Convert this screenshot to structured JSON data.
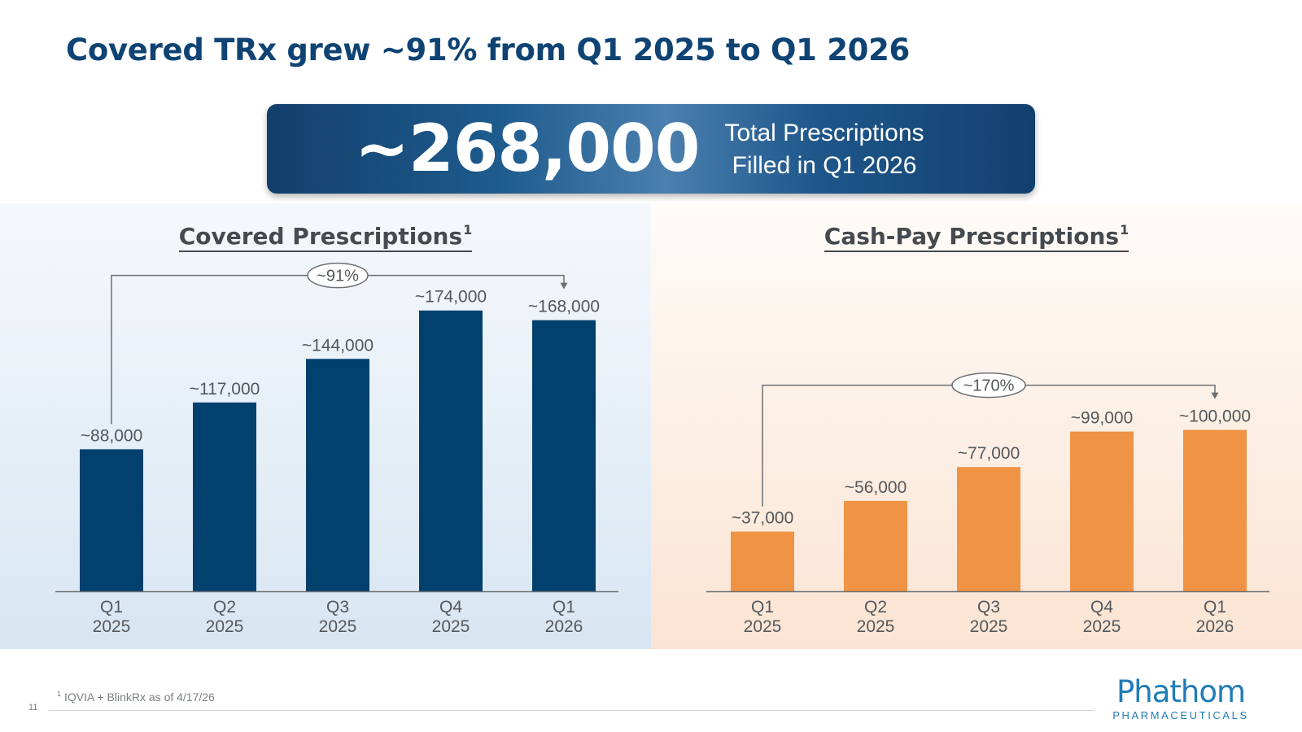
{
  "title": "Covered TRx grew ~91% from Q1 2025 to Q1 2026",
  "banner": {
    "value": "~268,000",
    "caption_line1": "Total Prescriptions",
    "caption_line2": "Filled in Q1 2026"
  },
  "colors": {
    "title": "#0e4373",
    "covered_bar": "#02406e",
    "cash_bar": "#ef9345",
    "axis": "#6b6f73",
    "label": "#54585c"
  },
  "chart_data": [
    {
      "type": "bar",
      "title": "Covered Prescriptions",
      "title_sup": "1",
      "categories": [
        [
          "Q1",
          "2025"
        ],
        [
          "Q2",
          "2025"
        ],
        [
          "Q3",
          "2025"
        ],
        [
          "Q4",
          "2025"
        ],
        [
          "Q1",
          "2026"
        ]
      ],
      "values": [
        88000,
        117000,
        144000,
        174000,
        168000
      ],
      "data_labels": [
        "~88,000",
        "~117,000",
        "~144,000",
        "~174,000",
        "~168,000"
      ],
      "annotation": {
        "label": "~91%",
        "from": 0,
        "to": 4
      },
      "color": "#02406e",
      "ylim": [
        0,
        190000
      ],
      "grid": false
    },
    {
      "type": "bar",
      "title": "Cash-Pay Prescriptions",
      "title_sup": "1",
      "categories": [
        [
          "Q1",
          "2025"
        ],
        [
          "Q2",
          "2025"
        ],
        [
          "Q3",
          "2025"
        ],
        [
          "Q4",
          "2025"
        ],
        [
          "Q1",
          "2026"
        ]
      ],
      "values": [
        37000,
        56000,
        77000,
        99000,
        100000
      ],
      "data_labels": [
        "~37,000",
        "~56,000",
        "~77,000",
        "~99,000",
        "~100,000"
      ],
      "annotation": {
        "label": "~170%",
        "from": 0,
        "to": 4
      },
      "color": "#ef9345",
      "ylim": [
        0,
        190000
      ],
      "grid": false
    }
  ],
  "footnote": {
    "marker": "1",
    "text": "IQVIA + BlinkRx as of 4/17/26"
  },
  "page_number": "11",
  "logo": {
    "word": "Phathom",
    "sub": "PHARMACEUTICALS"
  }
}
